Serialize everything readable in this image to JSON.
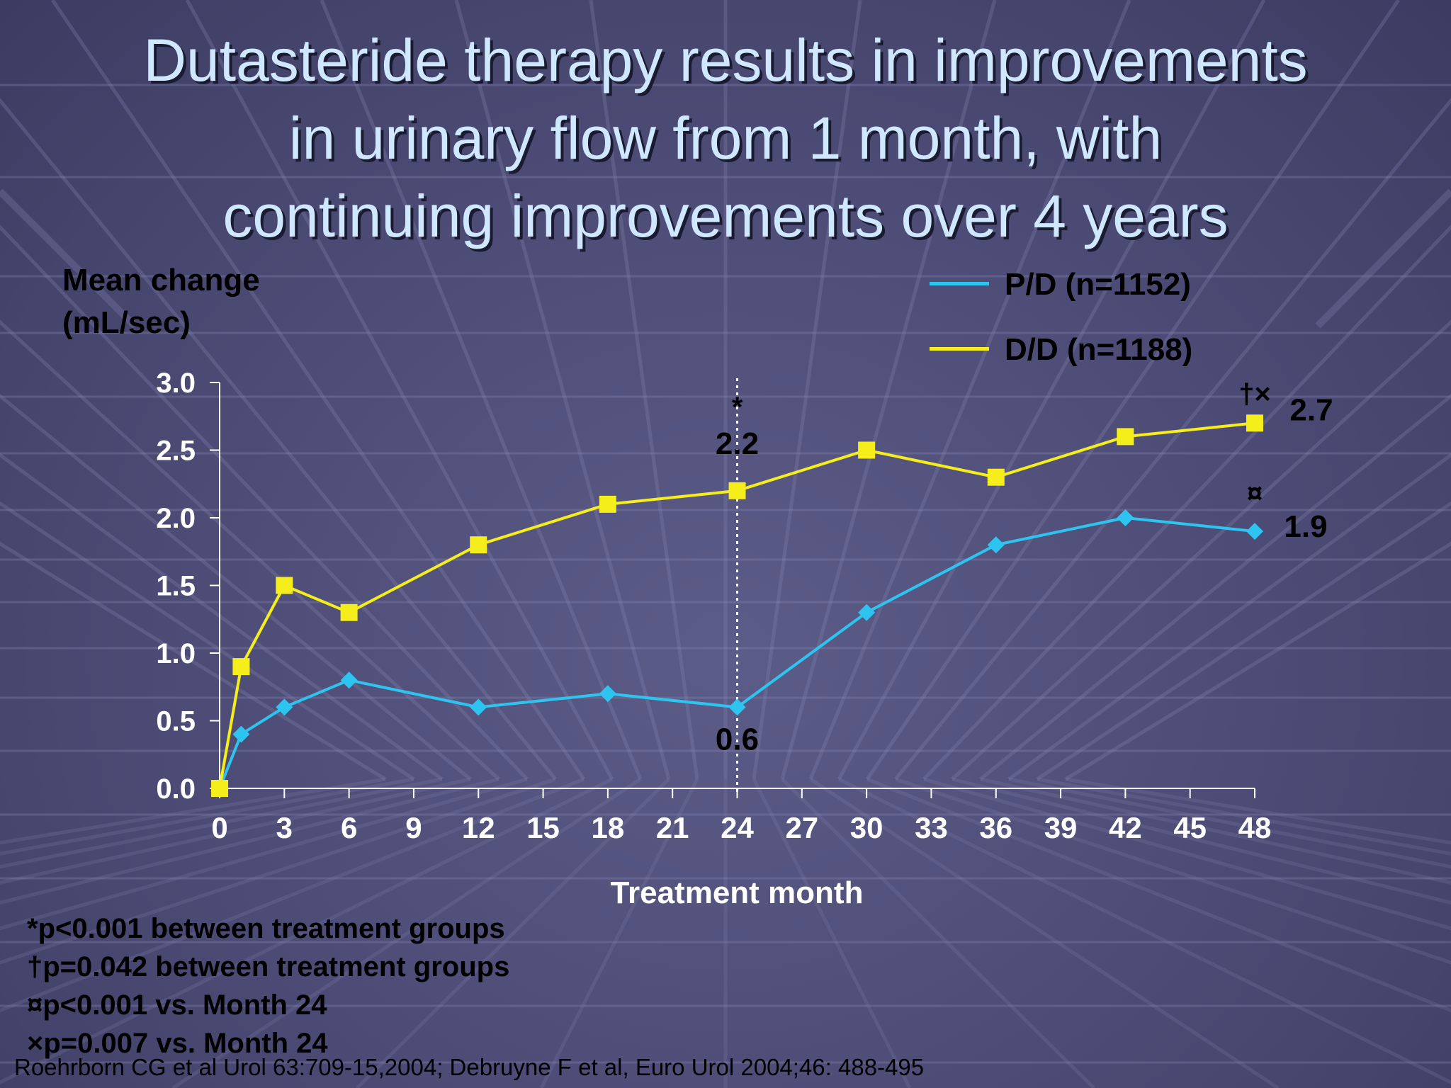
{
  "title": {
    "line1": "Dutasteride therapy results in improvements",
    "line2": "in urinary flow from 1 month, with",
    "line3": "continuing improvements over 4 years"
  },
  "ylabel": {
    "line1": "Mean change",
    "line2": "(mL/sec)"
  },
  "xlabel": "Treatment month",
  "legend": [
    {
      "label": "P/D (n=1152)",
      "color": "#2ec4f0"
    },
    {
      "label": "D/D (n=1188)",
      "color": "#f5ee1a"
    }
  ],
  "chart_data": {
    "type": "line",
    "xlabel": "Treatment month",
    "ylabel": "Mean change (mL/sec)",
    "xlim": [
      0,
      48
    ],
    "ylim": [
      0,
      3.0
    ],
    "x_ticks": [
      0,
      3,
      6,
      9,
      12,
      15,
      18,
      21,
      24,
      27,
      30,
      33,
      36,
      39,
      42,
      45,
      48
    ],
    "y_ticks": [
      "0.0",
      "0.5",
      "1.0",
      "1.5",
      "2.0",
      "2.5",
      "3.0"
    ],
    "legend_position": "top-right",
    "series": [
      {
        "name": "P/D (n=1152)",
        "color": "#2ec4f0",
        "marker": "diamond",
        "x": [
          0,
          1,
          3,
          6,
          12,
          18,
          24,
          30,
          36,
          42,
          48
        ],
        "y": [
          0.0,
          0.4,
          0.6,
          0.8,
          0.6,
          0.7,
          0.6,
          1.3,
          1.8,
          2.0,
          1.9
        ]
      },
      {
        "name": "D/D (n=1188)",
        "color": "#f5ee1a",
        "marker": "square",
        "x": [
          0,
          1,
          3,
          6,
          12,
          18,
          24,
          30,
          36,
          42,
          48
        ],
        "y": [
          0.0,
          0.9,
          1.5,
          1.3,
          1.8,
          2.1,
          2.2,
          2.5,
          2.3,
          2.6,
          2.7
        ]
      }
    ],
    "reference_line": {
      "x": 24,
      "style": "dotted"
    },
    "annotations": [
      {
        "text": "*",
        "x": 24,
        "y": 2.2,
        "dy": -105
      },
      {
        "text": "2.2",
        "x": 24,
        "y": 2.2,
        "dy": -52
      },
      {
        "text": "0.6",
        "x": 24,
        "y": 0.6,
        "dy": 60
      },
      {
        "text": "†×",
        "x": 48,
        "y": 2.7,
        "dy": -28
      },
      {
        "text": "2.7",
        "x": 48,
        "y": 2.7,
        "dx": 80,
        "dy": -4
      },
      {
        "text": "¤",
        "x": 48,
        "y": 1.9,
        "dy": -40
      },
      {
        "text": "1.9",
        "x": 48,
        "y": 1.9,
        "dx": 72,
        "dy": 8
      }
    ]
  },
  "footnotes": [
    "*p<0.001 between treatment groups",
    "†p=0.042 between treatment groups",
    "¤p<0.001 vs. Month 24",
    "×p=0.007 vs. Month 24"
  ],
  "citation": "Roehrborn CG et al  Urol 63:709-15,2004; Debruyne F et al, Euro Urol 2004;46: 488-495"
}
